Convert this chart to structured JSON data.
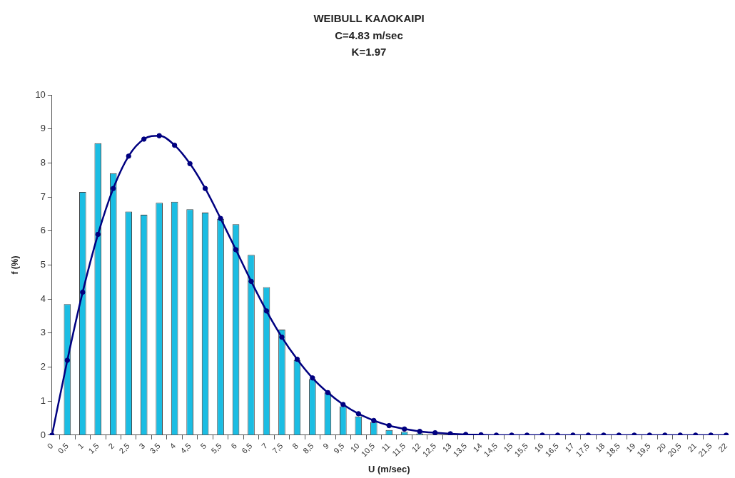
{
  "chart_data": {
    "type": "bar",
    "title": "WEIBULL ΚΑΛΟΚΑΙΡΙ",
    "subtitle": "C=4.83 m/sec\nK=1.97",
    "xlabel": "U (m/sec)",
    "ylabel": "f (%)",
    "categories": [
      "0",
      "0,5",
      "1",
      "1,5",
      "2",
      "2,5",
      "3",
      "3,5",
      "4",
      "4,5",
      "5",
      "5,5",
      "6",
      "6,5",
      "7",
      "7,5",
      "8",
      "8,5",
      "9",
      "9,5",
      "10",
      "10,5",
      "11",
      "11,5",
      "12",
      "12,5",
      "13",
      "13,5",
      "14",
      "14,5",
      "15",
      "15,5",
      "16",
      "16,5",
      "17",
      "17,5",
      "18",
      "18,5",
      "19",
      "19,5",
      "20",
      "20,5",
      "21",
      "21,5",
      "22"
    ],
    "series": [
      {
        "color": "#1bbde3",
        "values": [
          0,
          3.85,
          7.15,
          8.58,
          7.7,
          6.57,
          6.48,
          6.83,
          6.86,
          6.64,
          6.54,
          6.35,
          6.2,
          5.3,
          4.35,
          3.1,
          2.2,
          1.65,
          1.25,
          0.85,
          0.55,
          0.38,
          0.15,
          0.1,
          0.05,
          0,
          0,
          0,
          0,
          0,
          0,
          0,
          0,
          0,
          0,
          0,
          0,
          0,
          0,
          0,
          0,
          0,
          0,
          0,
          0
        ]
      },
      {
        "type": "line",
        "color": "#000080",
        "marker": "circle",
        "values": [
          0,
          2.2,
          4.2,
          5.9,
          7.25,
          8.2,
          8.7,
          8.8,
          8.52,
          7.98,
          7.25,
          6.37,
          5.45,
          4.52,
          3.65,
          2.88,
          2.23,
          1.68,
          1.25,
          0.9,
          0.63,
          0.43,
          0.28,
          0.18,
          0.11,
          0.07,
          0.04,
          0.02,
          0.01,
          0,
          0,
          0,
          0,
          0,
          0,
          0,
          0,
          0,
          0,
          0,
          0,
          0,
          0,
          0,
          0
        ]
      }
    ],
    "ylim": [
      0,
      10
    ],
    "yticks": [
      0,
      1,
      2,
      3,
      4,
      5,
      6,
      7,
      8,
      9,
      10
    ],
    "grid": false,
    "legend": false
  }
}
